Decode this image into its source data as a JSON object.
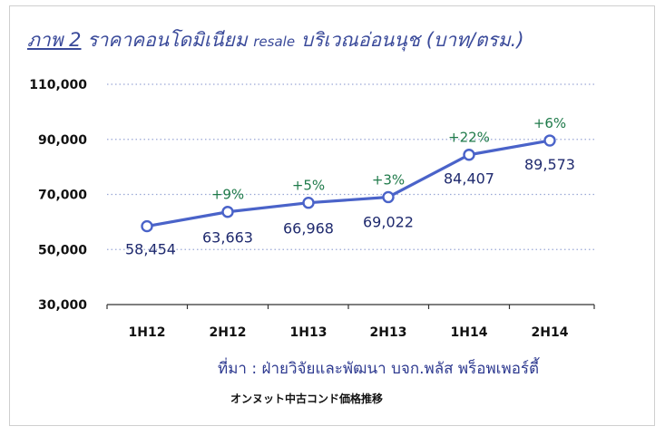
{
  "title": {
    "lead": "ภาพ 2",
    "text": "ราคาคอนโดมิเนียม",
    "latin": "resale",
    "tail": "บริเวณอ่อนนุช (บาท/ตรม.)"
  },
  "source": "ที่มา : ฝ่ายวิจัยและพัฒนา บจก.พลัส พร็อพเพอร์ตี้",
  "caption": "オンヌット中古コンド価格推移",
  "colors": {
    "line": "#4a63c9",
    "grid": "#9aa7d6",
    "value_text": "#1f2a6e",
    "pct_text": "#1f7a4a"
  },
  "chart_data": {
    "type": "line",
    "categories": [
      "1H12",
      "2H12",
      "1H13",
      "2H13",
      "1H14",
      "2H14"
    ],
    "values": [
      58454,
      63663,
      66968,
      69022,
      84407,
      89573
    ],
    "value_labels": [
      "58,454",
      "63,663",
      "66,968",
      "69,022",
      "84,407",
      "89,573"
    ],
    "change_labels": [
      "",
      "+9%",
      "+5%",
      "+3%",
      "+22%",
      "+6%"
    ],
    "yticks": [
      "110,000",
      "90,000",
      "70,000",
      "50,000",
      "30,000"
    ],
    "ytick_values": [
      110000,
      90000,
      70000,
      50000,
      30000
    ],
    "ylim": [
      30000,
      110000
    ],
    "grid": true,
    "legend": "none"
  }
}
